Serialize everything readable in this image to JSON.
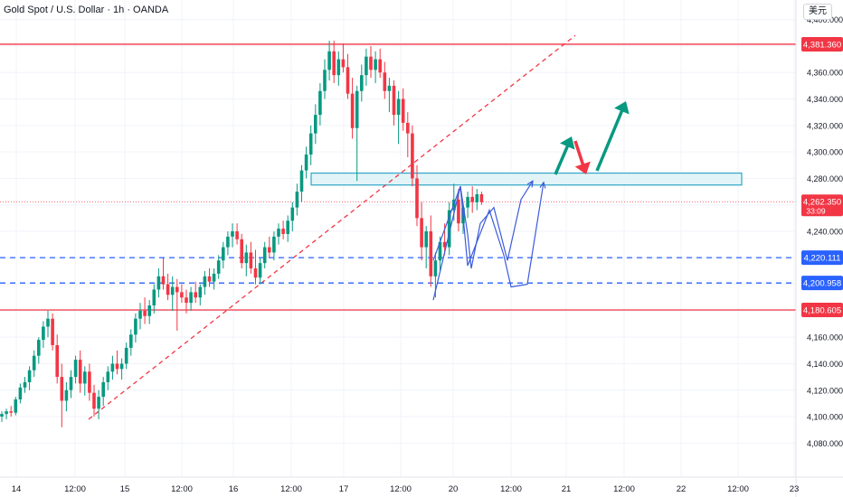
{
  "header": {
    "title": "Gold Spot / U.S. Dollar · 1h · OANDA",
    "currency": "美元"
  },
  "colors": {
    "up": "#089981",
    "down": "#f23645",
    "resistance": "#f23645",
    "support": "#2962ff",
    "zone": "#2ea7c7",
    "path": "#3b5bdb",
    "arrow_up": "#089981",
    "arrow_down": "#f23645"
  },
  "chart_data": {
    "type": "candlestick",
    "title": "Gold Spot / U.S. Dollar · 1h · OANDA",
    "ylim": [
      4070,
      4410
    ],
    "y_ticks": [
      4080,
      4100,
      4120,
      4140,
      4160,
      4180,
      4200,
      4220,
      4240,
      4260,
      4280,
      4300,
      4320,
      4340,
      4360,
      4380,
      4400
    ],
    "y_tick_labels": [
      "4,080.000",
      "4,100.000",
      "4,120.000",
      "4,140.000",
      "4,160.000",
      "4,180.000",
      "4,200.000",
      "4,220.000",
      "4,240.000",
      "4,260.000",
      "4,280.000",
      "4,300.000",
      "4,320.000",
      "4,340.000",
      "4,360.000",
      "4,380.000",
      "4,400.000"
    ],
    "x_tick_labels": [
      "14",
      "12:00",
      "15",
      "12:00",
      "16",
      "12:00",
      "17",
      "12:00",
      "20",
      "12:00",
      "21",
      "12:00",
      "22",
      "12:00",
      "23"
    ],
    "horizontal_levels": [
      {
        "label": "4,381.360",
        "value": 4381.36,
        "color": "#f23645",
        "style": "solid"
      },
      {
        "label": "4,220.111",
        "value": 4220.111,
        "color": "#2962ff",
        "style": "dashed"
      },
      {
        "label": "4,200.958",
        "value": 4200.958,
        "color": "#2962ff",
        "style": "dashed"
      },
      {
        "label": "4,180.605",
        "value": 4180.605,
        "color": "#f23645",
        "style": "solid"
      }
    ],
    "last_price": {
      "label": "4,262.350",
      "value": 4262.35,
      "countdown": "33:09"
    },
    "zone": {
      "low": 4275,
      "high": 4284
    },
    "candles": [
      [
        4100,
        4104,
        4096,
        4102
      ],
      [
        4102,
        4106,
        4098,
        4104
      ],
      [
        4104,
        4108,
        4100,
        4103
      ],
      [
        4103,
        4115,
        4101,
        4113
      ],
      [
        4113,
        4125,
        4110,
        4122
      ],
      [
        4122,
        4130,
        4118,
        4126
      ],
      [
        4126,
        4138,
        4120,
        4135
      ],
      [
        4135,
        4150,
        4130,
        4146
      ],
      [
        4146,
        4160,
        4140,
        4158
      ],
      [
        4158,
        4172,
        4152,
        4168
      ],
      [
        4168,
        4180,
        4160,
        4174
      ],
      [
        4174,
        4178,
        4150,
        4154
      ],
      [
        4154,
        4162,
        4125,
        4130
      ],
      [
        4130,
        4140,
        4092,
        4112
      ],
      [
        4112,
        4126,
        4104,
        4120
      ],
      [
        4120,
        4135,
        4114,
        4130
      ],
      [
        4130,
        4146,
        4125,
        4143
      ],
      [
        4143,
        4150,
        4118,
        4125
      ],
      [
        4125,
        4138,
        4116,
        4134
      ],
      [
        4134,
        4140,
        4112,
        4118
      ],
      [
        4118,
        4124,
        4100,
        4106
      ],
      [
        4106,
        4120,
        4098,
        4115
      ],
      [
        4115,
        4130,
        4108,
        4126
      ],
      [
        4126,
        4138,
        4120,
        4134
      ],
      [
        4134,
        4146,
        4128,
        4140
      ],
      [
        4140,
        4150,
        4132,
        4136
      ],
      [
        4136,
        4144,
        4128,
        4140
      ],
      [
        4140,
        4156,
        4136,
        4152
      ],
      [
        4152,
        4166,
        4146,
        4162
      ],
      [
        4162,
        4178,
        4156,
        4174
      ],
      [
        4174,
        4186,
        4166,
        4180
      ],
      [
        4180,
        4190,
        4170,
        4176
      ],
      [
        4176,
        4188,
        4170,
        4184
      ],
      [
        4184,
        4200,
        4178,
        4196
      ],
      [
        4196,
        4212,
        4190,
        4206
      ],
      [
        4206,
        4220,
        4196,
        4200
      ],
      [
        4200,
        4208,
        4188,
        4192
      ],
      [
        4192,
        4206,
        4180,
        4198
      ],
      [
        4198,
        4204,
        4165,
        4194
      ],
      [
        4194,
        4200,
        4186,
        4190
      ],
      [
        4190,
        4196,
        4178,
        4186
      ],
      [
        4186,
        4198,
        4180,
        4194
      ],
      [
        4194,
        4202,
        4186,
        4190
      ],
      [
        4190,
        4200,
        4184,
        4198
      ],
      [
        4198,
        4210,
        4192,
        4206
      ],
      [
        4206,
        4212,
        4198,
        4202
      ],
      [
        4202,
        4212,
        4196,
        4208
      ],
      [
        4208,
        4222,
        4204,
        4218
      ],
      [
        4218,
        4232,
        4212,
        4228
      ],
      [
        4228,
        4240,
        4222,
        4236
      ],
      [
        4236,
        4246,
        4228,
        4240
      ],
      [
        4240,
        4246,
        4230,
        4234
      ],
      [
        4234,
        4238,
        4212,
        4216
      ],
      [
        4216,
        4230,
        4206,
        4224
      ],
      [
        4224,
        4232,
        4208,
        4212
      ],
      [
        4212,
        4226,
        4200,
        4205
      ],
      [
        4205,
        4220,
        4200,
        4216
      ],
      [
        4216,
        4232,
        4212,
        4228
      ],
      [
        4228,
        4236,
        4220,
        4224
      ],
      [
        4224,
        4240,
        4218,
        4236
      ],
      [
        4236,
        4246,
        4230,
        4242
      ],
      [
        4242,
        4248,
        4234,
        4238
      ],
      [
        4238,
        4252,
        4232,
        4248
      ],
      [
        4248,
        4262,
        4240,
        4258
      ],
      [
        4258,
        4276,
        4252,
        4270
      ],
      [
        4270,
        4290,
        4262,
        4286
      ],
      [
        4286,
        4304,
        4280,
        4298
      ],
      [
        4298,
        4320,
        4290,
        4314
      ],
      [
        4314,
        4336,
        4306,
        4328
      ],
      [
        4328,
        4352,
        4320,
        4346
      ],
      [
        4346,
        4370,
        4340,
        4362
      ],
      [
        4362,
        4384,
        4354,
        4376
      ],
      [
        4376,
        4384,
        4352,
        4358
      ],
      [
        4358,
        4376,
        4350,
        4370
      ],
      [
        4370,
        4382,
        4360,
        4364
      ],
      [
        4364,
        4374,
        4340,
        4344
      ],
      [
        4344,
        4356,
        4310,
        4318
      ],
      [
        4318,
        4350,
        4278,
        4346
      ],
      [
        4346,
        4366,
        4338,
        4358
      ],
      [
        4358,
        4378,
        4350,
        4372
      ],
      [
        4372,
        4380,
        4356,
        4362
      ],
      [
        4362,
        4376,
        4352,
        4370
      ],
      [
        4370,
        4378,
        4356,
        4360
      ],
      [
        4360,
        4368,
        4340,
        4346
      ],
      [
        4346,
        4356,
        4330,
        4350
      ],
      [
        4350,
        4354,
        4320,
        4328
      ],
      [
        4328,
        4346,
        4306,
        4340
      ],
      [
        4340,
        4348,
        4316,
        4322
      ],
      [
        4322,
        4330,
        4296,
        4314
      ],
      [
        4314,
        4320,
        4274,
        4280
      ],
      [
        4280,
        4290,
        4244,
        4250
      ],
      [
        4250,
        4262,
        4218,
        4228
      ],
      [
        4228,
        4244,
        4212,
        4240
      ],
      [
        4240,
        4252,
        4198,
        4206
      ],
      [
        4206,
        4224,
        4190,
        4218
      ],
      [
        4218,
        4236,
        4210,
        4232
      ],
      [
        4232,
        4246,
        4222,
        4228
      ],
      [
        4228,
        4262,
        4222,
        4256
      ],
      [
        4256,
        4276,
        4248,
        4264
      ],
      [
        4264,
        4272,
        4240,
        4246
      ],
      [
        4246,
        4262,
        4238,
        4258
      ],
      [
        4258,
        4270,
        4250,
        4266
      ],
      [
        4266,
        4274,
        4254,
        4262
      ],
      [
        4262,
        4272,
        4256,
        4268
      ],
      [
        4268,
        4270,
        4260,
        4262
      ]
    ],
    "projected_path_1": [
      [
        4208,
        4218
      ],
      [
        4238,
        4274
      ],
      [
        4246,
        4238
      ],
      [
        4250,
        4212
      ],
      [
        4260,
        4246
      ],
      [
        4275,
        4258
      ],
      [
        4290,
        4218
      ],
      [
        4305,
        4264
      ],
      [
        4318,
        4278
      ]
    ],
    "projected_path_2": [
      [
        4208,
        4188
      ],
      [
        4238,
        4274
      ],
      [
        4246,
        4214
      ],
      [
        4270,
        4256
      ],
      [
        4286,
        4222
      ],
      [
        4294,
        4198
      ],
      [
        4312,
        4200
      ],
      [
        4330,
        4277
      ]
    ]
  }
}
